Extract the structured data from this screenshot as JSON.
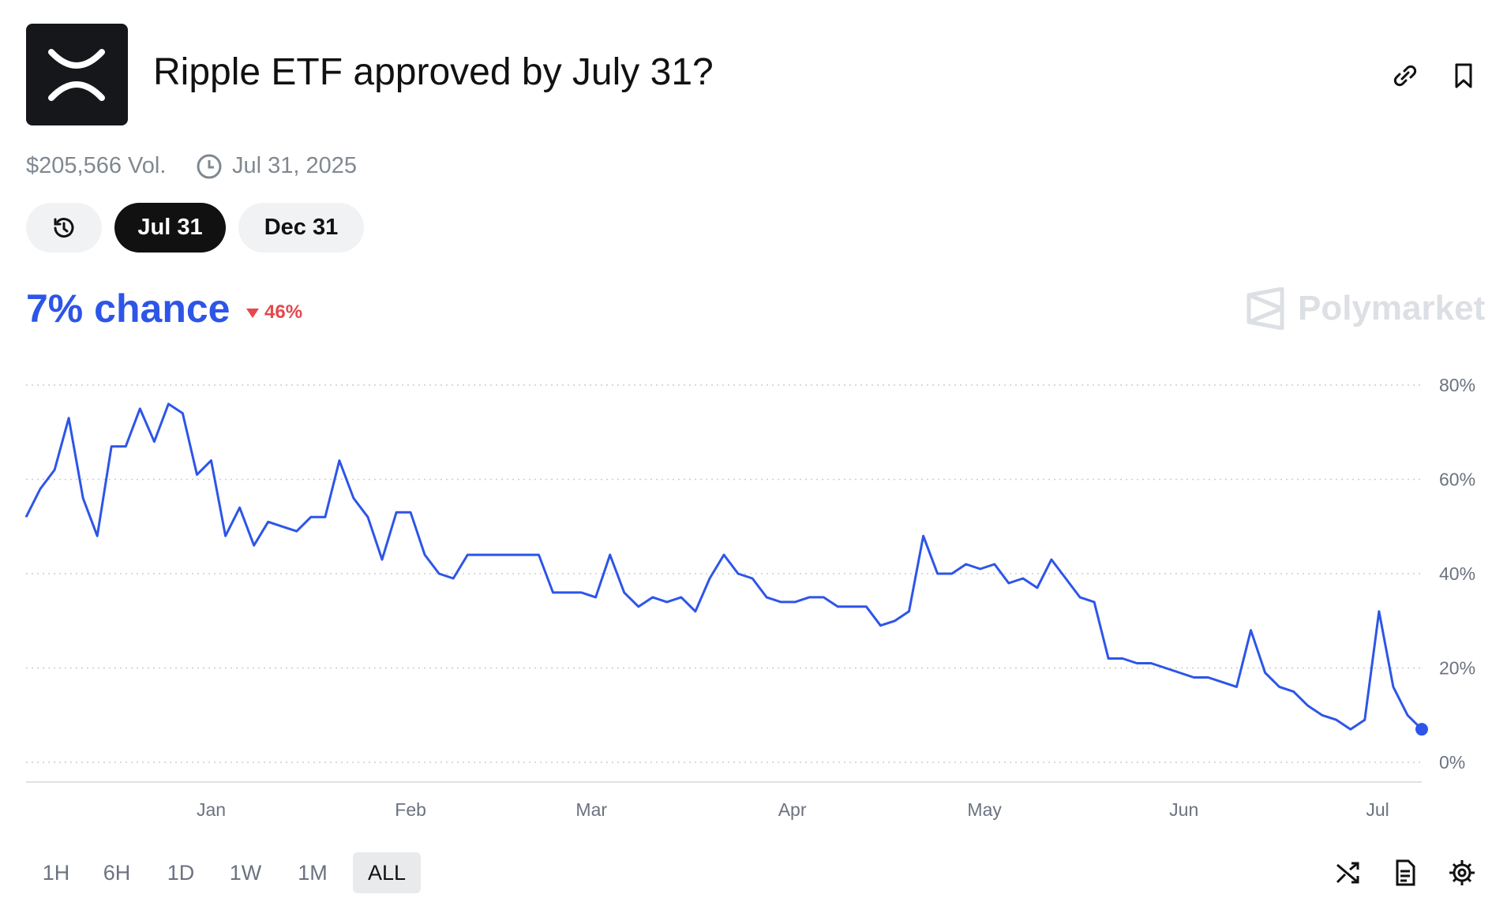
{
  "header": {
    "title": "Ripple ETF approved by July 31?",
    "volume": "$205,566 Vol.",
    "end_date": "Jul 31, 2025"
  },
  "date_tabs": [
    "Jul 31",
    "Dec 31"
  ],
  "chance": {
    "text": "7% chance",
    "change": "46%"
  },
  "brand": "Polymarket",
  "chart_data": {
    "type": "line",
    "color": "#2d55e8",
    "values": [
      52,
      58,
      62,
      73,
      56,
      48,
      67,
      67,
      75,
      68,
      76,
      74,
      61,
      64,
      48,
      54,
      46,
      51,
      50,
      49,
      52,
      52,
      64,
      56,
      52,
      43,
      53,
      53,
      44,
      40,
      39,
      44,
      44,
      44,
      44,
      44,
      44,
      36,
      36,
      36,
      35,
      44,
      36,
      33,
      35,
      34,
      35,
      32,
      39,
      44,
      40,
      39,
      35,
      34,
      34,
      35,
      35,
      33,
      33,
      33,
      29,
      30,
      32,
      48,
      40,
      40,
      42,
      41,
      42,
      38,
      39,
      37,
      43,
      39,
      35,
      34,
      22,
      22,
      21,
      21,
      20,
      19,
      18,
      18,
      17,
      16,
      28,
      19,
      16,
      15,
      12,
      10,
      9,
      7,
      9,
      32,
      16,
      10,
      7
    ],
    "xlim": [
      0,
      98
    ],
    "xticks": [
      {
        "value": 13,
        "label": "Jan"
      },
      {
        "value": 27,
        "label": "Feb"
      },
      {
        "value": 39.7,
        "label": "Mar"
      },
      {
        "value": 53.8,
        "label": "Apr"
      },
      {
        "value": 67.3,
        "label": "May"
      },
      {
        "value": 81.3,
        "label": "Jun"
      },
      {
        "value": 94.9,
        "label": "Jul"
      }
    ],
    "ylim": [
      0,
      80
    ],
    "yticks": [
      {
        "value": 0,
        "label": "0%"
      },
      {
        "value": 20,
        "label": "20%"
      },
      {
        "value": 40,
        "label": "40%"
      },
      {
        "value": 60,
        "label": "60%"
      },
      {
        "value": 80,
        "label": "80%"
      }
    ],
    "grid": true
  },
  "time_ranges": [
    "1H",
    "6H",
    "1D",
    "1W",
    "1M",
    "ALL"
  ]
}
